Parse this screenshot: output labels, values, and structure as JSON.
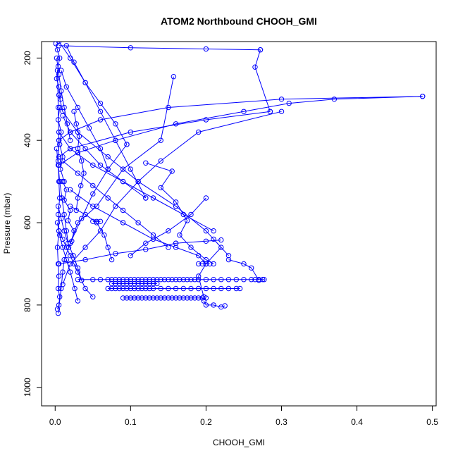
{
  "chart_data": {
    "type": "line",
    "title": "ATOM2 Northbound CHOOH_GMI",
    "xlabel": "CHOOH_GMI",
    "ylabel": "Pressure (mbar)",
    "xlim": [
      -0.018,
      0.505
    ],
    "ylim": [
      1045,
      160
    ],
    "y_axis_inverted": true,
    "x_ticks": [
      0.0,
      0.1,
      0.2,
      0.3,
      0.4,
      0.5
    ],
    "x_tick_labels": [
      "0.0",
      "0.1",
      "0.2",
      "0.3",
      "0.4",
      "0.5"
    ],
    "y_ticks": [
      200,
      400,
      600,
      800,
      1000
    ],
    "y_tick_labels": [
      "200",
      "400",
      "600",
      "800",
      "1000"
    ],
    "grid": false,
    "legend": "none",
    "marker": "open-circle",
    "color": "#0000ff",
    "series": [
      {
        "x": [
          0.003,
          0.005,
          0.006,
          0.004,
          0.005,
          0.004,
          0.003,
          0.005,
          0.004,
          0.006,
          0.005,
          0.004,
          0.005,
          0.004,
          0.003
        ],
        "y": [
          810,
          800,
          780,
          760,
          730,
          700,
          660,
          620,
          580,
          540,
          500,
          450,
          400,
          320,
          230
        ]
      },
      {
        "x": [
          0.004,
          0.008,
          0.01,
          0.012,
          0.02,
          0.03,
          0.055,
          0.09,
          0.14,
          0.157
        ],
        "y": [
          820,
          760,
          720,
          690,
          650,
          600,
          560,
          470,
          400,
          245
        ]
      },
      {
        "x": [
          0.01,
          0.02,
          0.04,
          0.06,
          0.08,
          0.11,
          0.14,
          0.19,
          0.3
        ],
        "y": [
          750,
          700,
          660,
          620,
          560,
          500,
          450,
          380,
          330
        ]
      },
      {
        "x": [
          0.005,
          0.03,
          0.08,
          0.16,
          0.25,
          0.31,
          0.37,
          0.487
        ],
        "y": [
          460,
          430,
          400,
          360,
          330,
          310,
          300,
          293
        ]
      },
      {
        "x": [
          0.487,
          0.3,
          0.15,
          0.06,
          0.02,
          0.005
        ],
        "y": [
          293,
          300,
          320,
          350,
          380,
          400
        ]
      },
      {
        "x": [
          0.005,
          0.1,
          0.2,
          0.272
        ],
        "y": [
          170,
          175,
          178,
          180
        ]
      },
      {
        "x": [
          0.272,
          0.265,
          0.285
        ],
        "y": [
          180,
          222,
          330
        ]
      },
      {
        "x": [
          0.285,
          0.2,
          0.1,
          0.02,
          0.005
        ],
        "y": [
          330,
          350,
          380,
          420,
          440
        ]
      },
      {
        "x": [
          0.005,
          0.02,
          0.05,
          0.09,
          0.13,
          0.17,
          0.21
        ],
        "y": [
          380,
          420,
          460,
          500,
          540,
          580,
          620
        ]
      },
      {
        "x": [
          0.21,
          0.22,
          0.2,
          0.19,
          0.197
        ],
        "y": [
          640,
          660,
          700,
          730,
          780
        ]
      },
      {
        "x": [
          0.197,
          0.2,
          0.21,
          0.22,
          0.225
        ],
        "y": [
          790,
          800,
          800,
          805,
          802
        ]
      },
      {
        "x": [
          0.02,
          0.05,
          0.09,
          0.13,
          0.16,
          0.19,
          0.2
        ],
        "y": [
          520,
          560,
          600,
          640,
          660,
          680,
          700
        ]
      },
      {
        "x": [
          0.2,
          0.18,
          0.15,
          0.12,
          0.1
        ],
        "y": [
          540,
          580,
          620,
          650,
          680
        ]
      },
      {
        "x": [
          0.12,
          0.155,
          0.14,
          0.16,
          0.175,
          0.165,
          0.18,
          0.2,
          0.21
        ],
        "y": [
          455,
          475,
          515,
          550,
          595,
          630,
          660,
          690,
          700
        ]
      },
      {
        "x": [
          0.005,
          0.01,
          0.03,
          0.07,
          0.11,
          0.16,
          0.2,
          0.23
        ],
        "y": [
          290,
          330,
          380,
          440,
          500,
          560,
          620,
          680
        ]
      },
      {
        "x": [
          0.23,
          0.25,
          0.26,
          0.27
        ],
        "y": [
          690,
          700,
          710,
          740
        ]
      },
      {
        "x": [
          0.005,
          0.02,
          0.04,
          0.06,
          0.08,
          0.1,
          0.12
        ],
        "y": [
          160,
          200,
          260,
          330,
          400,
          470,
          540
        ]
      },
      {
        "x": [
          0.12,
          0.09,
          0.06,
          0.04,
          0.02,
          0.01
        ],
        "y": [
          540,
          500,
          460,
          420,
          380,
          340
        ]
      },
      {
        "x": [
          0.01,
          0.03,
          0.05,
          0.07,
          0.09,
          0.11,
          0.13,
          0.15
        ],
        "y": [
          450,
          480,
          510,
          540,
          570,
          600,
          630,
          660
        ]
      },
      {
        "x": [
          0.015,
          0.025,
          0.04,
          0.06,
          0.08,
          0.095
        ],
        "y": [
          170,
          210,
          260,
          310,
          360,
          410
        ]
      },
      {
        "x": [
          0.095,
          0.07,
          0.05,
          0.035,
          0.02
        ],
        "y": [
          410,
          470,
          530,
          590,
          650
        ]
      },
      {
        "x": [
          0.008,
          0.015,
          0.03,
          0.045,
          0.06,
          0.07
        ],
        "y": [
          230,
          270,
          320,
          370,
          420,
          470
        ]
      },
      {
        "x": [
          0.02,
          0.04,
          0.055,
          0.065,
          0.07,
          0.075
        ],
        "y": [
          560,
          580,
          600,
          630,
          660,
          690
        ]
      },
      {
        "x": [
          0.005,
          0.04,
          0.08,
          0.12,
          0.16
        ],
        "y": [
          700,
          690,
          675,
          665,
          650
        ]
      },
      {
        "x": [
          0.16,
          0.2,
          0.22
        ],
        "y": [
          650,
          645,
          642
        ]
      },
      {
        "x": [
          0.03,
          0.05,
          0.06,
          0.07,
          0.075,
          0.08,
          0.085,
          0.09,
          0.095,
          0.1,
          0.105,
          0.11,
          0.115,
          0.12,
          0.125,
          0.13,
          0.135,
          0.14,
          0.145,
          0.15,
          0.155,
          0.16,
          0.165,
          0.17,
          0.175,
          0.18,
          0.185,
          0.19,
          0.2,
          0.21,
          0.22,
          0.23,
          0.24,
          0.25,
          0.26,
          0.265,
          0.27,
          0.275,
          0.277
        ],
        "y": [
          738,
          738,
          738,
          738,
          738,
          738,
          738,
          738,
          738,
          738,
          738,
          738,
          738,
          738,
          738,
          738,
          738,
          738,
          738,
          738,
          738,
          738,
          738,
          738,
          738,
          738,
          738,
          738,
          738,
          738,
          738,
          738,
          738,
          738,
          738,
          738,
          738,
          738,
          738
        ]
      },
      {
        "x": [
          0.07,
          0.075,
          0.08,
          0.085,
          0.09,
          0.095,
          0.1,
          0.105,
          0.11,
          0.115,
          0.12,
          0.125,
          0.13,
          0.14,
          0.15,
          0.16,
          0.17,
          0.18,
          0.19,
          0.2,
          0.21,
          0.22,
          0.23,
          0.24,
          0.245
        ],
        "y": [
          760,
          760,
          760,
          760,
          760,
          760,
          760,
          760,
          760,
          760,
          760,
          760,
          760,
          760,
          760,
          760,
          760,
          760,
          760,
          760,
          760,
          760,
          760,
          760,
          760
        ]
      },
      {
        "x": [
          0.09,
          0.095,
          0.1,
          0.105,
          0.11,
          0.115,
          0.12,
          0.125,
          0.13,
          0.135,
          0.14,
          0.145,
          0.15,
          0.155,
          0.16,
          0.165,
          0.17,
          0.175,
          0.18,
          0.185,
          0.19,
          0.195,
          0.2
        ],
        "y": [
          783,
          783,
          783,
          783,
          783,
          783,
          783,
          783,
          783,
          783,
          783,
          783,
          783,
          783,
          783,
          783,
          783,
          783,
          783,
          783,
          783,
          783,
          783
        ]
      },
      {
        "x": [
          0.075,
          0.08,
          0.085,
          0.09,
          0.095,
          0.1,
          0.105,
          0.11,
          0.115,
          0.12,
          0.125,
          0.13,
          0.135
        ],
        "y": [
          748,
          748,
          748,
          748,
          748,
          748,
          748,
          748,
          748,
          748,
          748,
          748,
          748
        ]
      },
      {
        "x": [
          0.19,
          0.195,
          0.2,
          0.205
        ],
        "y": [
          700,
          700,
          700,
          700
        ]
      },
      {
        "x": [
          0.05,
          0.055,
          0.06
        ],
        "y": [
          597,
          597,
          597
        ]
      },
      {
        "x": [
          0.005,
          0.01,
          0.015,
          0.02,
          0.025,
          0.03,
          0.035,
          0.04,
          0.05
        ],
        "y": [
          620,
          640,
          660,
          680,
          700,
          720,
          740,
          760,
          780
        ]
      },
      {
        "x": [
          0.003,
          0.006,
          0.01,
          0.015,
          0.02,
          0.026,
          0.03
        ],
        "y": [
          600,
          630,
          660,
          690,
          720,
          760,
          790
        ]
      },
      {
        "x": [
          0.004,
          0.008,
          0.012,
          0.017,
          0.024,
          0.03,
          0.035
        ],
        "y": [
          560,
          590,
          620,
          650,
          680,
          710,
          740
        ]
      },
      {
        "x": [
          0.002,
          0.005,
          0.008,
          0.012,
          0.016,
          0.02
        ],
        "y": [
          200,
          240,
          280,
          320,
          360,
          400
        ]
      },
      {
        "x": [
          0.002,
          0.004,
          0.006,
          0.009,
          0.012,
          0.015,
          0.018
        ],
        "y": [
          420,
          460,
          500,
          540,
          580,
          620,
          660
        ]
      },
      {
        "x": [
          0.001,
          0.003,
          0.006,
          0.004,
          0.002,
          0.005,
          0.007
        ],
        "y": [
          165,
          180,
          200,
          220,
          250,
          270,
          300
        ]
      },
      {
        "x": [
          0.006,
          0.004,
          0.008,
          0.006,
          0.01,
          0.007,
          0.012
        ],
        "y": [
          320,
          350,
          380,
          410,
          440,
          470,
          500
        ]
      },
      {
        "x": [
          0.01,
          0.015,
          0.012,
          0.02,
          0.017,
          0.025,
          0.022
        ],
        "y": [
          500,
          520,
          545,
          570,
          595,
          620,
          645
        ]
      },
      {
        "x": [
          0.025,
          0.028,
          0.032,
          0.03,
          0.035,
          0.038,
          0.034,
          0.03,
          0.028
        ],
        "y": [
          330,
          360,
          390,
          420,
          450,
          480,
          510,
          540,
          570
        ]
      }
    ]
  }
}
